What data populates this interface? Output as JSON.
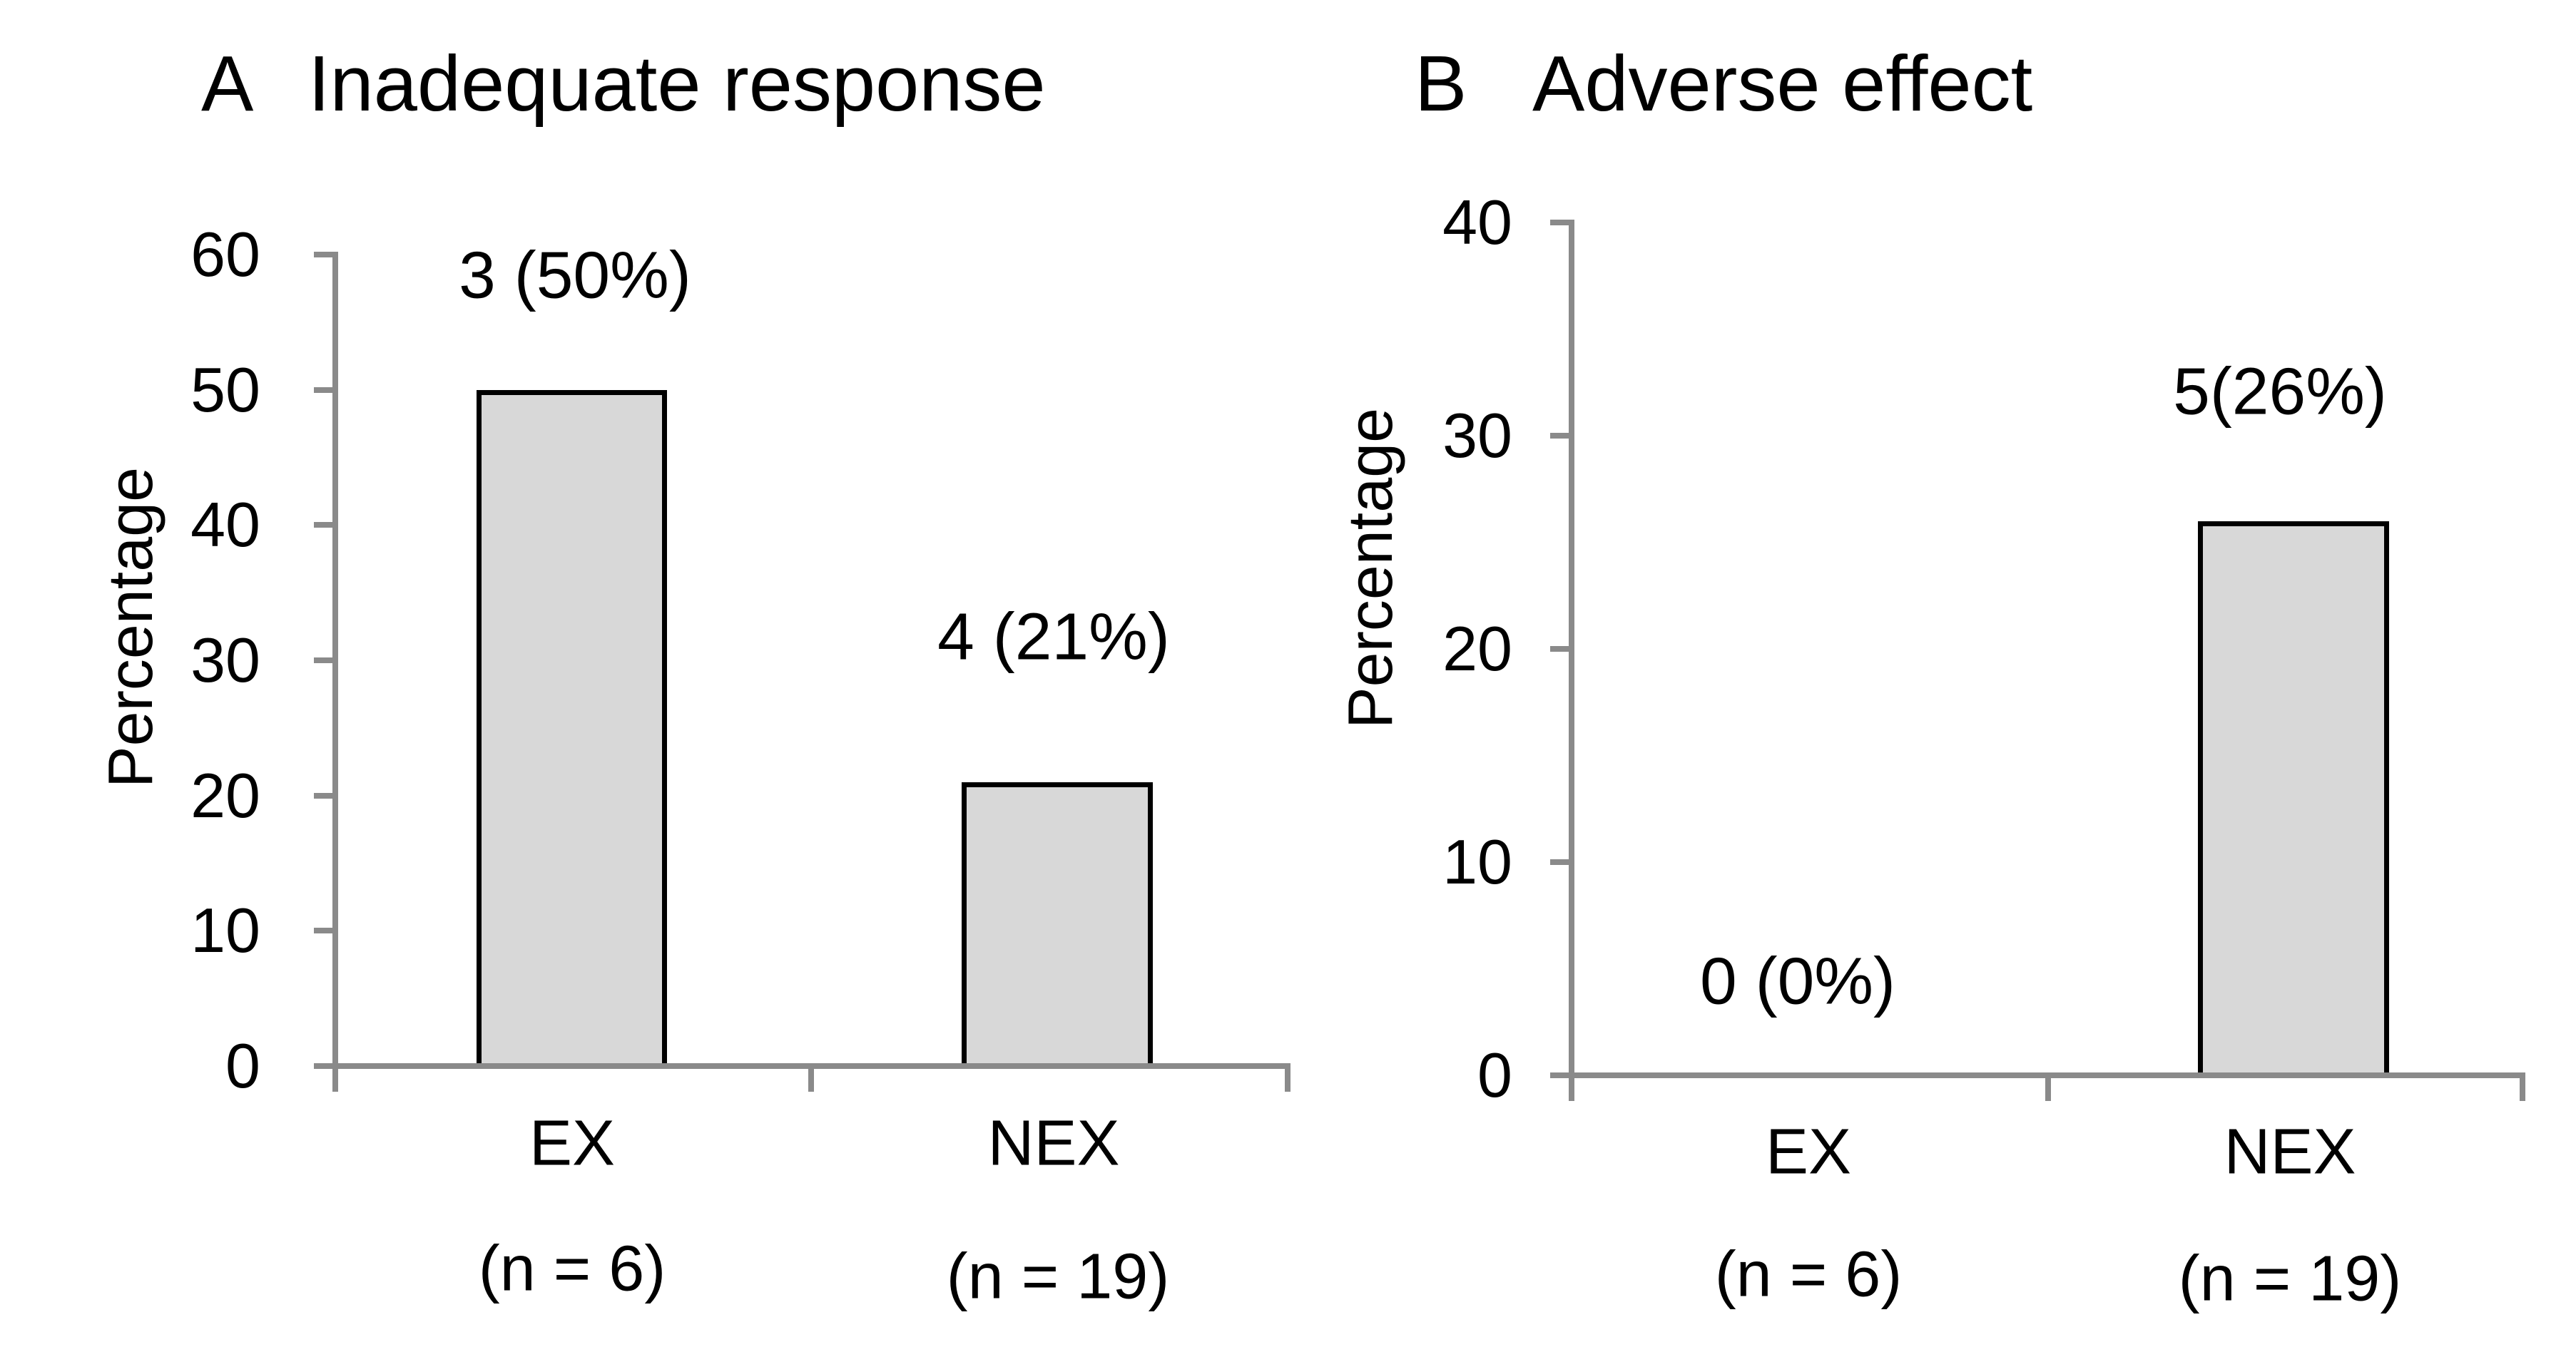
{
  "figure": {
    "background": "#ffffff",
    "colors": {
      "axis": "#8a8a8a",
      "bar_fill": "#d8d8d8",
      "bar_border": "#000000",
      "text": "#000000"
    }
  },
  "chart_data": [
    {
      "type": "bar",
      "panel_letter": "A",
      "title": "Inadequate response",
      "ylabel": "Percentage",
      "ylim": [
        0,
        60
      ],
      "yticks": [
        0,
        10,
        20,
        30,
        40,
        50,
        60
      ],
      "categories": [
        "EX",
        "NEX"
      ],
      "category_sublabels": [
        "(n = 6)",
        "(n = 19)"
      ],
      "values": [
        50,
        21
      ],
      "bar_labels": [
        "3 (50%)",
        "4 (21%)"
      ],
      "grid": false,
      "legend": "none"
    },
    {
      "type": "bar",
      "panel_letter": "B",
      "title": "Adverse effect",
      "ylabel": "Percentage",
      "ylim": [
        0,
        40
      ],
      "yticks": [
        0,
        10,
        20,
        30,
        40
      ],
      "categories": [
        "EX",
        "NEX"
      ],
      "category_sublabels": [
        "(n = 6)",
        "(n = 19)"
      ],
      "values": [
        0,
        26
      ],
      "bar_labels": [
        "0 (0%)",
        "5(26%)"
      ],
      "grid": false,
      "legend": "none"
    }
  ]
}
